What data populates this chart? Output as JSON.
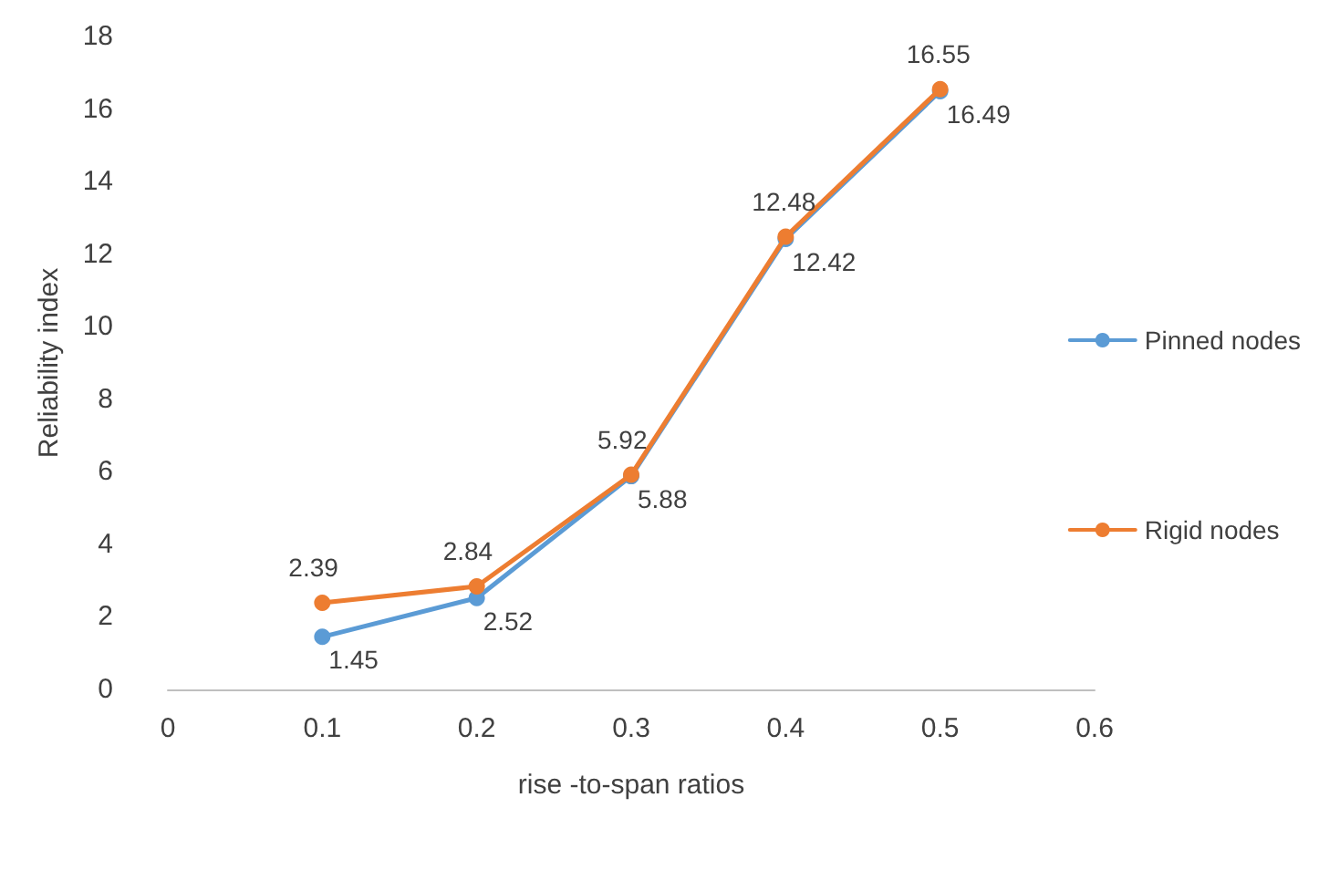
{
  "chart_data": {
    "type": "line",
    "xlabel": "rise -to-span ratios",
    "ylabel": "Reliability index",
    "x": [
      0.1,
      0.2,
      0.3,
      0.4,
      0.5
    ],
    "series": [
      {
        "name": "Pinned nodes",
        "color": "#5b9bd5",
        "values": [
          1.45,
          2.52,
          5.88,
          12.42,
          16.49
        ]
      },
      {
        "name": "Rigid nodes",
        "color": "#ed7d31",
        "values": [
          2.39,
          2.84,
          5.92,
          12.48,
          16.55
        ]
      }
    ],
    "xlim": [
      0,
      0.6
    ],
    "xticks": [
      0,
      0.1,
      0.2,
      0.3,
      0.4,
      0.5,
      0.6
    ],
    "ylim": [
      0,
      18
    ],
    "yticks": [
      0,
      2,
      4,
      6,
      8,
      10,
      12,
      14,
      16,
      18
    ],
    "grid": false,
    "legend": "right",
    "marker": "circle",
    "line_style": "solid",
    "data_labels": true
  }
}
